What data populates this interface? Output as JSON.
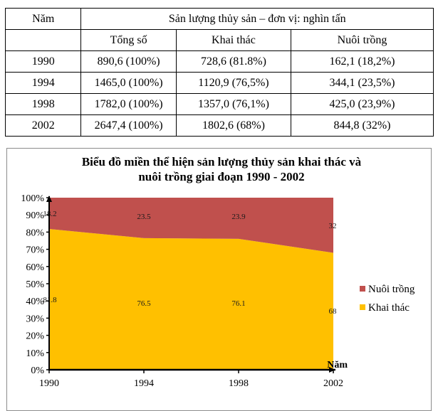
{
  "table": {
    "header": {
      "year": "Năm",
      "group": "Sản lượng thủy sản – đơn vị: nghìn tấn",
      "sub": [
        "Tổng số",
        "Khai thác",
        "Nuôi trồng"
      ]
    },
    "rows": [
      {
        "year": "1990",
        "total": "890,6 (100%)",
        "exploit": "728,6 (81.8%)",
        "farm": "162,1 (18,2%)"
      },
      {
        "year": "1994",
        "total": "1465,0 (100%)",
        "exploit": "1120,9 (76,5%)",
        "farm": "344,1 (23,5%)"
      },
      {
        "year": "1998",
        "total": "1782,0 (100%)",
        "exploit": "1357,0 (76,1%)",
        "farm": "425,0 (23,9%)"
      },
      {
        "year": "2002",
        "total": "2647,4 (100%)",
        "exploit": "1802,6 (68%)",
        "farm": "844,8 (32%)"
      }
    ]
  },
  "chart_data": {
    "type": "area",
    "stacked": true,
    "percent": true,
    "title": "Biểu đồ miền thể hiện sản lượng thủy sản khai thác và nuôi trồng giai đoạn 1990 - 2002",
    "title_lines": [
      "Biểu đồ miền thể hiện sản lượng thủy sản khai thác và",
      "nuôi trồng giai đoạn 1990 - 2002"
    ],
    "categories": [
      "1990",
      "1994",
      "1998",
      "2002"
    ],
    "series": [
      {
        "name": "Khai thác",
        "color": "#FFC000",
        "values": [
          81.8,
          76.5,
          76.1,
          68
        ],
        "labels": [
          "81.8",
          "76.5",
          "76.1",
          "68"
        ]
      },
      {
        "name": "Nuôi trồng",
        "color": "#C0504D",
        "values": [
          18.2,
          23.5,
          23.9,
          32
        ],
        "labels": [
          "18.2",
          "23.5",
          "23.9",
          "32"
        ]
      }
    ],
    "xlabel": "Năm",
    "ylabel": "",
    "ylim": [
      0,
      100
    ],
    "yticks": [
      "0%",
      "10%",
      "20%",
      "30%",
      "40%",
      "50%",
      "60%",
      "70%",
      "80%",
      "90%",
      "100%"
    ],
    "grid": false,
    "legend": {
      "position": "right",
      "entries": [
        "Nuôi trồng",
        "Khai thác"
      ]
    }
  }
}
